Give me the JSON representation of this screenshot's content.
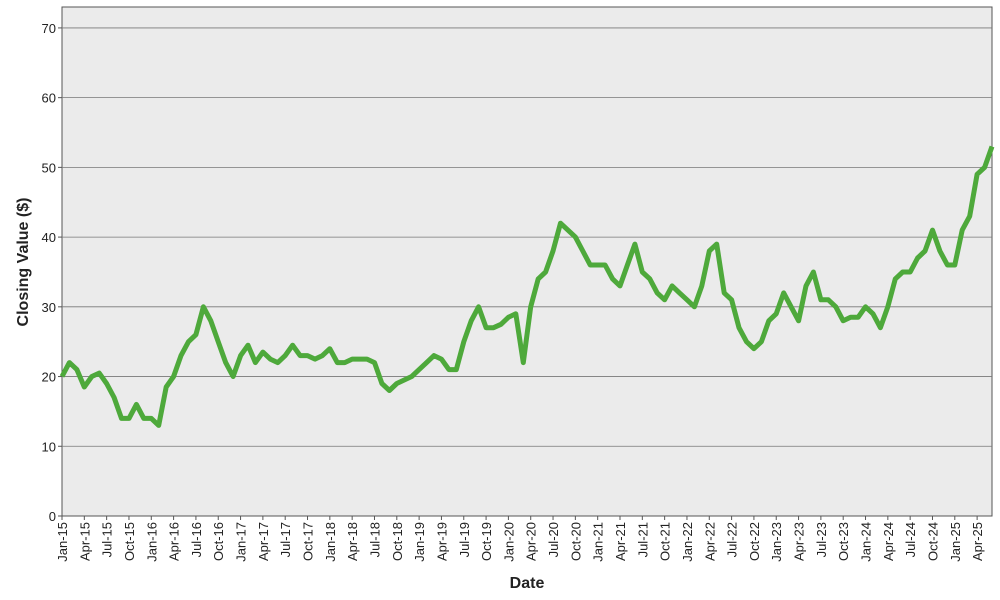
{
  "chart_data": {
    "type": "line",
    "x_label": "Date",
    "y_label": "Closing Value ($)",
    "categories": [
      "Jan-15",
      null,
      null,
      "Apr-15",
      null,
      null,
      "Jul-15",
      null,
      null,
      "Oct-15",
      null,
      null,
      "Jan-16",
      null,
      null,
      "Apr-16",
      null,
      null,
      "Jul-16",
      null,
      null,
      "Oct-16",
      null,
      null,
      "Jan-17",
      null,
      null,
      "Apr-17",
      null,
      null,
      "Jul-17",
      null,
      null,
      "Oct-17",
      null,
      null,
      "Jan-18",
      null,
      null,
      "Apr-18",
      null,
      null,
      "Jul-18",
      null,
      null,
      "Oct-18",
      null,
      null,
      "Jan-19",
      null,
      null,
      "Apr-19",
      null,
      null,
      "Jul-19",
      null,
      null,
      "Oct-19",
      null,
      null,
      "Jan-20",
      null,
      null,
      "Apr-20",
      null,
      null,
      "Jul-20",
      null,
      null,
      "Oct-20",
      null,
      null,
      "Jan-21",
      null,
      null,
      "Apr-21",
      null,
      null,
      "Jul-21",
      null,
      null,
      "Oct-21",
      null,
      null,
      "Jan-22",
      null,
      null,
      "Apr-22",
      null,
      null,
      "Jul-22",
      null,
      null,
      "Oct-22",
      null,
      null,
      "Jan-23",
      null,
      null,
      "Apr-23",
      null,
      null,
      "Jul-23",
      null,
      null,
      "Oct-23",
      null,
      null,
      "Jan-24",
      null,
      null,
      "Apr-24",
      null,
      null,
      "Jul-24",
      null,
      null,
      "Oct-24",
      null,
      null,
      "Jan-25",
      null,
      null,
      "Apr-25",
      null,
      null
    ],
    "series": [
      {
        "color": "#4ea93b",
        "values": [
          20,
          22,
          21,
          18.5,
          20,
          20.5,
          19,
          17,
          14,
          14,
          16,
          14,
          14,
          13,
          18.5,
          20,
          23,
          25,
          26,
          30,
          28,
          25,
          22,
          20,
          23,
          24.5,
          22,
          23.5,
          22.5,
          22,
          23,
          24.5,
          23,
          23,
          22.5,
          23,
          24,
          22,
          22,
          22.5,
          22.5,
          22.5,
          22,
          19,
          18,
          19,
          19.5,
          20,
          21,
          22,
          23,
          22.5,
          21,
          21,
          25,
          28,
          30,
          27,
          27,
          27.5,
          28.5,
          29,
          22,
          30,
          34,
          35,
          38,
          42,
          41,
          40,
          38,
          36,
          36,
          36,
          34,
          33,
          36,
          39,
          35,
          34,
          32,
          31,
          33,
          32,
          31,
          30,
          33,
          38,
          39,
          32,
          31,
          27,
          25,
          24,
          25,
          28,
          29,
          32,
          30,
          28,
          33,
          35,
          31,
          31,
          30,
          28,
          28.5,
          28.5,
          30,
          29,
          27,
          30,
          34,
          35,
          35,
          37,
          38,
          41,
          38,
          36,
          36,
          41,
          43,
          49,
          50,
          53
        ]
      }
    ],
    "ylim": [
      0,
      73
    ],
    "yticks": [
      0,
      10,
      20,
      30,
      40,
      50,
      60,
      70
    ],
    "grid": true
  }
}
